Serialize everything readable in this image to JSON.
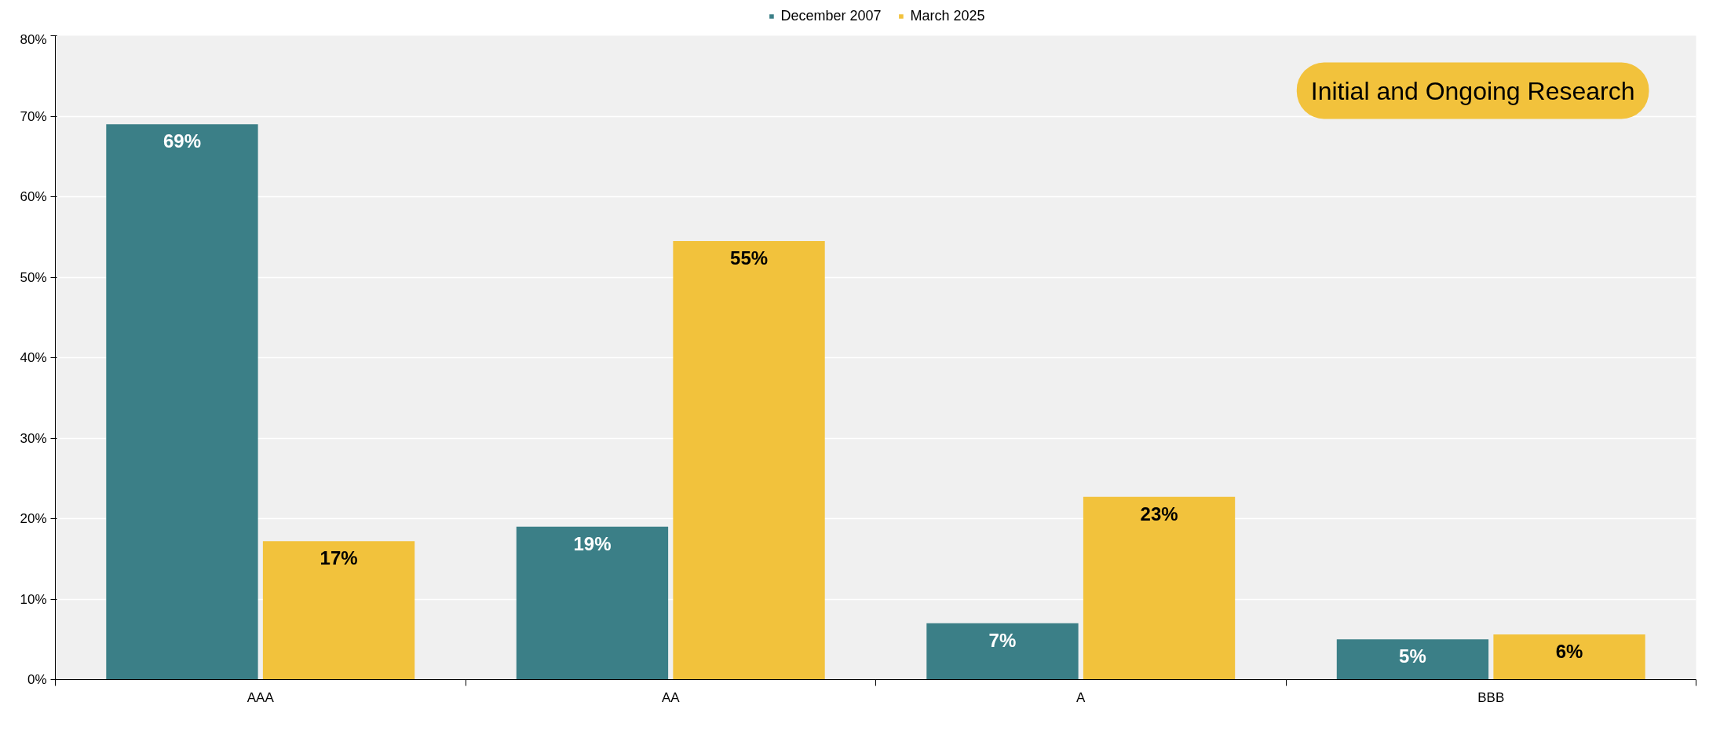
{
  "chart_data": {
    "type": "bar",
    "categories": [
      "AAA",
      "AA",
      "A",
      "BBB"
    ],
    "series": [
      {
        "name": "December 2007",
        "color": "#3b7f87",
        "values": [
          69.0,
          19.0,
          7.0,
          5.0
        ],
        "value_labels": [
          "69%",
          "19%",
          "7%",
          "5%"
        ]
      },
      {
        "name": "March 2025",
        "color": "#f2c23c",
        "values": [
          17.2,
          54.5,
          22.7,
          5.6
        ],
        "value_labels": [
          "17%",
          "55%",
          "23%",
          "6%"
        ]
      }
    ],
    "ylim": [
      0,
      80
    ],
    "yticks": [
      {
        "value": 0,
        "label": "0%"
      },
      {
        "value": 10,
        "label": "10%"
      },
      {
        "value": 20,
        "label": "20%"
      },
      {
        "value": 30,
        "label": "30%"
      },
      {
        "value": 40,
        "label": "40%"
      },
      {
        "value": 50,
        "label": "50%"
      },
      {
        "value": 60,
        "label": "60%"
      },
      {
        "value": 70,
        "label": "70%"
      },
      {
        "value": 80,
        "label": "80%"
      }
    ],
    "grid": "y",
    "legend": "top",
    "annotations": [
      "Initial and Ongoing Research"
    ]
  }
}
